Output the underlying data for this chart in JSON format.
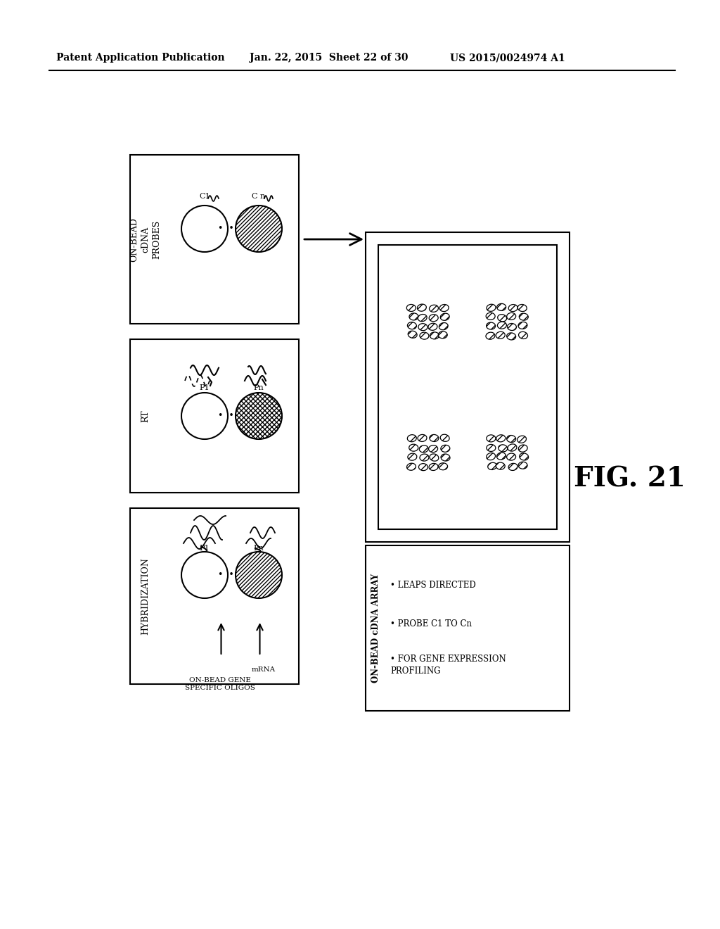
{
  "bg_color": "#ffffff",
  "header_text_left": "Patent Application Publication",
  "header_text_mid": "Jan. 22, 2015  Sheet 22 of 30",
  "header_text_right": "US 2015/0024974 A1",
  "fig_label": "FIG. 21",
  "box1_label": "ON-BEAD\ncDNA\nPROBES",
  "box2_label": "RT",
  "box3_label": "HYBRIDIZATION",
  "result_title": "ON-BEAD cDNA ARRAY",
  "result_bullets": [
    "LEAPS DIRECTED",
    "PROBE C1 TO Cn",
    "FOR GENE EXPRESSION\nPROFILING"
  ]
}
